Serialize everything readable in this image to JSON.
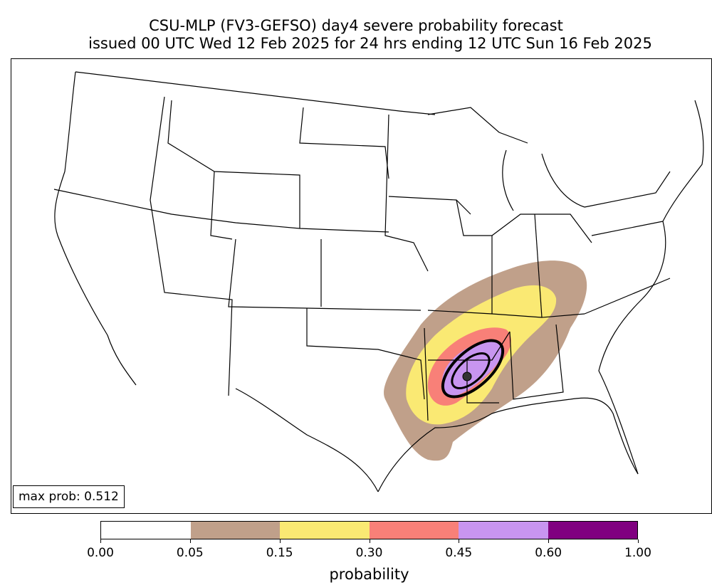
{
  "title": {
    "line1": "CSU-MLP (FV3-GEFSO) day4 severe probability forecast",
    "line2": "issued 00 UTC Wed 12 Feb 2025 for 24 hrs ending 12 UTC Sun 16 Feb 2025"
  },
  "map": {
    "region": "continental United States",
    "max_prob_label": "max prob: 0.512",
    "max_prob": 0.512,
    "line_color": "#000000"
  },
  "colorbar": {
    "label": "probability",
    "ticks": [
      "0.00",
      "0.05",
      "0.15",
      "0.30",
      "0.45",
      "0.60",
      "1.00"
    ],
    "bins": [
      {
        "from": 0.0,
        "to": 0.05,
        "color": "#ffffff"
      },
      {
        "from": 0.05,
        "to": 0.15,
        "color": "#c0a08a"
      },
      {
        "from": 0.15,
        "to": 0.3,
        "color": "#fae973"
      },
      {
        "from": 0.3,
        "to": 0.45,
        "color": "#f88078"
      },
      {
        "from": 0.45,
        "to": 0.6,
        "color": "#c895f0"
      },
      {
        "from": 0.6,
        "to": 1.0,
        "color": "#800080"
      }
    ]
  }
}
